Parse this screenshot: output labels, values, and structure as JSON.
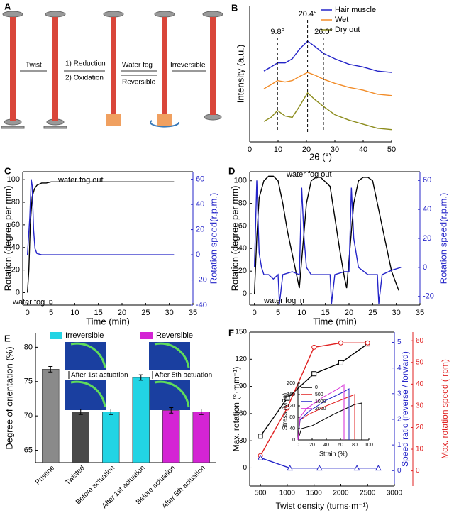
{
  "diagram": {
    "panel": "A",
    "twist": "Twist",
    "step1": "1) Reduction",
    "step2": "2) Oxidation",
    "fog": "Water fog",
    "reversible": "Reversible",
    "irreversible": "Irreversible"
  },
  "chart_data": [
    {
      "panel": "B",
      "type": "line",
      "xlabel": "2θ (°)",
      "ylabel": "Intensity (a.u.)",
      "xlim": [
        0,
        50
      ],
      "xticks": [
        0,
        10,
        20,
        30,
        40,
        50
      ],
      "ylim": [
        0,
        100
      ],
      "x": [
        5,
        7.5,
        9.8,
        12.5,
        15,
        17.5,
        20.4,
        23,
        26,
        30,
        35,
        40,
        45,
        50
      ],
      "series": [
        {
          "name": "Hair muscle",
          "color": "#2424c8",
          "values": [
            52,
            55,
            58,
            58,
            61,
            68,
            74,
            70,
            65,
            61,
            57,
            55,
            52,
            51
          ]
        },
        {
          "name": "Wet",
          "color": "#f28c28",
          "values": [
            39,
            42,
            45,
            44,
            45,
            48,
            51,
            49,
            46,
            43,
            40,
            38,
            35,
            34
          ]
        },
        {
          "name": "Dry out",
          "color": "#8c8c1c",
          "values": [
            15,
            18,
            23,
            19,
            18,
            26,
            36,
            31,
            26,
            20,
            16,
            13,
            10,
            9
          ]
        }
      ],
      "annotations": [
        {
          "label": "9.8°",
          "x": 9.8
        },
        {
          "label": "20.4°",
          "x": 20.4
        },
        {
          "label": "26.0°",
          "x": 26.0
        }
      ],
      "legend": "upper right"
    },
    {
      "panel": "C",
      "type": "line",
      "xlabel": "Time (min)",
      "ylabel": "Rotation (degree per mm)",
      "y2label": "Rotation speed(r.p.m.)",
      "y2_color": "#2424c8",
      "xlim": [
        -1,
        35
      ],
      "xticks": [
        0,
        5,
        10,
        15,
        20,
        25,
        30,
        35
      ],
      "ylim": [
        -11,
        107
      ],
      "yticks": [
        0,
        20,
        40,
        60,
        80,
        100
      ],
      "y2lim": [
        -40,
        66
      ],
      "y2ticks": [
        -40,
        -20,
        0,
        20,
        40,
        60
      ],
      "series": [
        {
          "color": "#000000",
          "x": [
            0,
            0.3,
            0.6,
            1,
            1.5,
            2,
            3,
            4,
            5,
            10,
            20,
            31
          ],
          "values": [
            0,
            20,
            60,
            85,
            92,
            95,
            97,
            97,
            98,
            98,
            98,
            98
          ]
        },
        {
          "color": "#2424c8",
          "axis": "y2",
          "x": [
            0,
            0.5,
            0.8,
            1,
            1.3,
            1.6,
            2,
            3,
            5,
            10,
            20,
            31
          ],
          "values": [
            0,
            30,
            60,
            55,
            20,
            5,
            1,
            0,
            0,
            0,
            0,
            0
          ]
        }
      ],
      "annotations": [
        "water fog out",
        "water fog in"
      ]
    },
    {
      "panel": "D",
      "type": "line",
      "xlabel": "Time (min)",
      "ylabel": "Rotation (degree per mm)",
      "y2label": "Rotation speed(r.p.m.)",
      "y2_color": "#2424c8",
      "xlim": [
        -1,
        35
      ],
      "xticks": [
        0,
        5,
        10,
        15,
        20,
        25,
        30,
        35
      ],
      "ylim": [
        -10,
        108
      ],
      "yticks": [
        0,
        20,
        40,
        60,
        80,
        100
      ],
      "y2lim": [
        -26,
        66
      ],
      "y2ticks": [
        -20,
        0,
        20,
        40,
        60
      ],
      "series": [
        {
          "color": "#000000",
          "x": [
            0,
            0.5,
            1,
            2,
            3,
            4,
            5,
            6,
            7,
            8,
            9,
            9.5,
            10,
            11,
            12,
            13,
            14,
            16,
            18,
            19,
            19.5,
            20,
            21,
            22,
            23,
            24,
            25,
            27,
            29,
            30.5
          ],
          "values": [
            0,
            50,
            85,
            100,
            104,
            104,
            100,
            80,
            55,
            35,
            15,
            5,
            30,
            80,
            100,
            103,
            103,
            95,
            40,
            15,
            5,
            30,
            80,
            100,
            103,
            103,
            100,
            60,
            20,
            3
          ]
        },
        {
          "color": "#2424c8",
          "axis": "y2",
          "x": [
            0,
            0.5,
            1,
            1.5,
            2,
            3,
            4,
            5,
            5.3,
            6,
            8,
            9.5,
            10,
            10.5,
            11,
            12,
            14,
            16,
            16.3,
            17,
            19,
            20,
            20.5,
            21,
            22,
            24,
            26,
            26.3,
            27,
            29,
            31
          ],
          "values": [
            0,
            60,
            10,
            0,
            -5,
            -5,
            -8,
            -5,
            -25,
            -5,
            -3,
            -5,
            55,
            20,
            0,
            -5,
            -5,
            -5,
            -25,
            -5,
            -3,
            -3,
            55,
            20,
            0,
            -5,
            -5,
            -25,
            -5,
            -2,
            0
          ]
        }
      ],
      "annotations": [
        "water fog out",
        "water fog in"
      ]
    },
    {
      "panel": "E",
      "type": "bar",
      "ylabel": "Degree of orientation (%)",
      "categories": [
        "Pristine",
        "Twisted",
        "Before actuation",
        "After 1st actuation",
        "Before actuation",
        "After 5th actuation"
      ],
      "values": [
        76.8,
        70.6,
        70.6,
        75.6,
        70.8,
        70.6
      ],
      "errors": [
        0.4,
        0.4,
        0.4,
        0.4,
        0.4,
        0.4
      ],
      "colors": [
        "#8a8a8a",
        "#4a4a4a",
        "#22d4e4",
        "#22d4e4",
        "#d424d4",
        "#d424d4"
      ],
      "ylim": [
        63.2,
        82
      ],
      "yticks": [
        65,
        70,
        75,
        80
      ],
      "legend": [
        {
          "name": "Irreversible",
          "color": "#22d4e4"
        },
        {
          "name": "Reversible",
          "color": "#d424d4"
        }
      ],
      "captions": [
        "After 1st actuation",
        "After 5th actuation"
      ]
    },
    {
      "panel": "F",
      "type": "scatter",
      "xlabel": "Twist density (turns·m⁻¹)",
      "ylabel": "Max. rotation (°·mm⁻¹)",
      "y2label": "Speed ratio (reverse / forward)",
      "y3label": "Max. rotation speed ( rpm)",
      "y2_color": "#2424c8",
      "y3_color": "#e02020",
      "xlim": [
        300,
        3000
      ],
      "xticks": [
        500,
        1000,
        1500,
        2000,
        2500,
        3000
      ],
      "ylim": [
        -20,
        150
      ],
      "yticks": [
        0,
        30,
        60,
        90,
        120,
        150
      ],
      "y2lim": [
        -0.6,
        5.4
      ],
      "y2ticks": [
        0,
        1,
        2,
        3,
        4,
        5
      ],
      "y3lim": [
        -7,
        64
      ],
      "y3ticks": [
        0,
        10,
        20,
        30,
        40,
        50,
        60
      ],
      "series": [
        {
          "color": "#000000",
          "marker": "square",
          "x": [
            500,
            1000,
            1500,
            2000,
            2500
          ],
          "values": [
            35,
            77,
            104,
            116,
            137
          ]
        },
        {
          "color": "#e02020",
          "marker": "circle",
          "axis": "y3",
          "x": [
            500,
            1000,
            1500,
            2000,
            2500
          ],
          "values": [
            7,
            29,
            57,
            59,
            59
          ]
        },
        {
          "color": "#2424c8",
          "marker": "triangle",
          "axis": "y2",
          "x": [
            500,
            1050,
            1600,
            2300,
            2700
          ],
          "values": [
            0.5,
            0.1,
            0.1,
            0.1,
            0.1
          ]
        }
      ]
    },
    {
      "type": "line",
      "xlabel": "Strain (%)",
      "ylabel": "Stress (MPa)",
      "xlim": [
        0,
        100
      ],
      "xticks": [
        0,
        20,
        40,
        60,
        80,
        100
      ],
      "ylim": [
        0,
        200
      ],
      "yticks": [
        0,
        40,
        80,
        120,
        160,
        200
      ],
      "series": [
        {
          "name": "0",
          "color": "#000000",
          "x": [
            0,
            5,
            20,
            50,
            80,
            90,
            90
          ],
          "values": [
            0,
            40,
            50,
            90,
            125,
            130,
            0
          ]
        },
        {
          "name": "500",
          "color": "#e02020",
          "x": [
            0,
            3,
            15,
            40,
            70,
            80,
            80
          ],
          "values": [
            0,
            70,
            90,
            120,
            150,
            160,
            0
          ]
        },
        {
          "name": "1000",
          "color": "#2424c8",
          "x": [
            0,
            3,
            15,
            40,
            65,
            72,
            72
          ],
          "values": [
            0,
            70,
            100,
            140,
            170,
            180,
            0
          ]
        },
        {
          "name": "2000",
          "color": "#d424d4",
          "x": [
            0,
            3,
            12,
            35,
            60,
            65,
            65
          ],
          "values": [
            0,
            80,
            110,
            150,
            185,
            195,
            0
          ]
        }
      ],
      "legend": "upper left"
    }
  ]
}
